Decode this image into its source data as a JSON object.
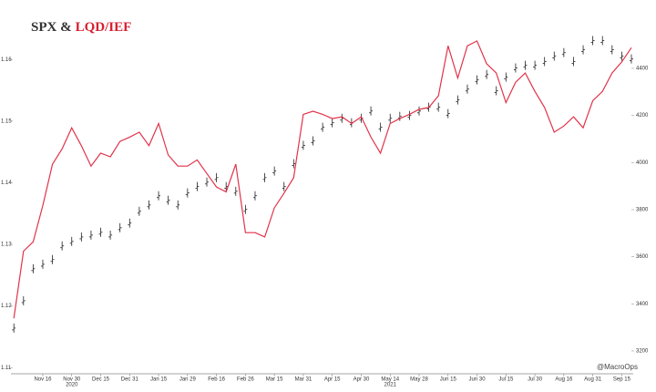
{
  "chart_data": {
    "type": "line",
    "title_parts": [
      {
        "text": "SPX &",
        "color": "#333333"
      },
      {
        "text": "LQD/IEF",
        "color": "#d6202f"
      }
    ],
    "annotation": "@MacroOps",
    "categories": [
      null,
      null,
      null,
      "Nov 16",
      null,
      null,
      "Nov 30",
      null,
      null,
      "Dec 15",
      null,
      null,
      "Dec 31",
      null,
      null,
      "Jan 15",
      null,
      null,
      "Jan 29",
      null,
      null,
      "Feb 16",
      null,
      null,
      "Feb 26",
      null,
      null,
      "Mar 15",
      null,
      null,
      "Mar 31",
      null,
      null,
      "Apr 15",
      null,
      null,
      "Apr 30",
      null,
      null,
      "May 14",
      null,
      null,
      "May 28",
      null,
      null,
      "Jun 15",
      null,
      null,
      "Jun 30",
      null,
      null,
      "Jul 15",
      null,
      null,
      "Jul 30",
      null,
      null,
      "Aug 16",
      null,
      null,
      "Aug 31",
      null,
      null,
      "Sep 15",
      null
    ],
    "category_years": [
      null,
      null,
      null,
      null,
      null,
      null,
      "2020",
      null,
      null,
      null,
      null,
      null,
      null,
      null,
      null,
      null,
      null,
      null,
      null,
      null,
      null,
      null,
      null,
      null,
      null,
      null,
      null,
      null,
      null,
      null,
      null,
      null,
      null,
      null,
      null,
      null,
      null,
      null,
      null,
      "2021",
      null,
      null,
      null,
      null,
      null,
      null,
      null,
      null,
      null,
      null,
      null,
      null,
      null,
      null,
      null,
      null,
      null,
      null,
      null,
      null,
      null,
      null,
      null,
      null,
      null
    ],
    "series": [
      {
        "name": "SPX",
        "color": "#222222",
        "axis": "y2",
        "style": "bar-ticks",
        "values": [
          3297,
          3413,
          3549,
          3568,
          3588,
          3646,
          3665,
          3684,
          3692,
          3704,
          3692,
          3723,
          3743,
          3793,
          3820,
          3859,
          3840,
          3820,
          3871,
          3898,
          3917,
          3936,
          3898,
          3878,
          3801,
          3859,
          3936,
          3964,
          3898,
          3995,
          4073,
          4092,
          4150,
          4169,
          4188,
          4169,
          4188,
          4219,
          4150,
          4188,
          4196,
          4200,
          4219,
          4235,
          4235,
          4208,
          4266,
          4312,
          4351,
          4374,
          4305,
          4363,
          4402,
          4413,
          4413,
          4429,
          4452,
          4467,
          4429,
          4479,
          4518,
          4518,
          4479,
          4452,
          4440
        ]
      },
      {
        "name": "LQD/IEF",
        "color": "#e0334a",
        "axis": "y",
        "style": "line",
        "values": [
          1.118,
          1.1289,
          1.1304,
          1.1363,
          1.143,
          1.1455,
          1.1489,
          1.146,
          1.1427,
          1.1448,
          1.1442,
          1.1467,
          1.1474,
          1.1482,
          1.146,
          1.1496,
          1.1445,
          1.1427,
          1.1427,
          1.1437,
          1.1415,
          1.1393,
          1.1385,
          1.143,
          1.1319,
          1.1319,
          1.1312,
          1.1359,
          1.1383,
          1.1408,
          1.1511,
          1.1516,
          1.1511,
          1.1504,
          1.1507,
          1.1496,
          1.1507,
          1.1474,
          1.1448,
          1.1496,
          1.1504,
          1.1511,
          1.1519,
          1.1522,
          1.1541,
          1.1622,
          1.157,
          1.1622,
          1.163,
          1.1593,
          1.1578,
          1.153,
          1.1563,
          1.1578,
          1.1548,
          1.1522,
          1.1482,
          1.1492,
          1.1507,
          1.1489,
          1.1533,
          1.1548,
          1.1578,
          1.1596,
          1.1619
        ]
      }
    ],
    "ylim": [
      1.109,
      1.1655
    ],
    "yticks": [
      1.11,
      1.12,
      1.13,
      1.14,
      1.15,
      1.16
    ],
    "y2lim": [
      3103,
      4582
    ],
    "y2ticks": [
      3200,
      3400,
      3600,
      3800,
      4000,
      4200,
      4400
    ],
    "grid": false
  }
}
